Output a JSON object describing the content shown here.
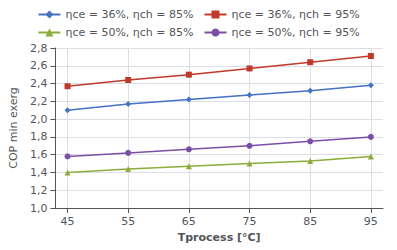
{
  "chart_data": {
    "type": "line",
    "x": [
      45,
      55,
      65,
      75,
      85,
      95
    ],
    "series": [
      {
        "name": "ηce = 36%, ηch = 85%",
        "color": "#4472C4",
        "marker": "diamond",
        "values": [
          2.1,
          2.17,
          2.22,
          2.27,
          2.32,
          2.38
        ]
      },
      {
        "name": "ηce = 36%, ηch = 95%",
        "color": "#C0392B",
        "marker": "square",
        "values": [
          2.37,
          2.44,
          2.5,
          2.57,
          2.64,
          2.71
        ]
      },
      {
        "name": "ηce = 50%, ηch = 85%",
        "color": "#8BAD3B",
        "marker": "triangle",
        "values": [
          1.4,
          1.44,
          1.47,
          1.5,
          1.53,
          1.58
        ]
      },
      {
        "name": "ηce = 50%, ηch = 95%",
        "color": "#7B4FA6",
        "marker": "circle",
        "values": [
          1.58,
          1.62,
          1.66,
          1.7,
          1.75,
          1.8
        ]
      }
    ],
    "x_label": "Tprocess [°C]",
    "y_label": "COP min exerg",
    "xlim": [
      43,
      97
    ],
    "xticks": [
      45,
      55,
      65,
      75,
      85,
      95
    ],
    "ylim": [
      1.0,
      2.8
    ],
    "yticks": [
      {
        "value": 1.0,
        "label": "1,0"
      },
      {
        "value": 1.2,
        "label": "1,2"
      },
      {
        "value": 1.4,
        "label": "1,4"
      },
      {
        "value": 1.6,
        "label": "1,6"
      },
      {
        "value": 1.8,
        "label": "1,8"
      },
      {
        "value": 2.0,
        "label": "2,0"
      },
      {
        "value": 2.2,
        "label": "2,2"
      },
      {
        "value": 2.4,
        "label": "2,4"
      },
      {
        "value": 2.6,
        "label": "2,6"
      },
      {
        "value": 2.8,
        "label": "2,8"
      }
    ],
    "grid": true,
    "legend": "upper center"
  }
}
